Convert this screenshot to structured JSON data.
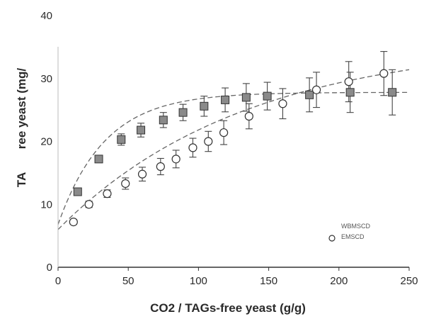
{
  "chart_data": {
    "type": "scatter",
    "title": "",
    "xlabel": "CO2 / TAGs-free yeast (g/g)",
    "ylabel": "TA       ree yeast (mg/",
    "xlim": [
      0,
      250
    ],
    "ylim": [
      0,
      40
    ],
    "xticks": [
      "0",
      "50",
      "100",
      "150",
      "200",
      "250"
    ],
    "yticks": [
      "0",
      "10",
      "20",
      "30",
      "40"
    ],
    "grid": false,
    "legend_position": "bottom-right",
    "series": [
      {
        "name": "WBMSCD",
        "marker": "square",
        "color": "#8a8a8a",
        "x": [
          14,
          29,
          45,
          59,
          75,
          89,
          104,
          119,
          134,
          149,
          179,
          208,
          238
        ],
        "y": [
          12.0,
          17.2,
          20.3,
          21.8,
          23.4,
          24.6,
          25.6,
          26.6,
          27.0,
          27.2,
          27.4,
          27.8,
          27.8
        ],
        "err": [
          0.4,
          0.5,
          0.9,
          1.1,
          1.2,
          1.3,
          1.6,
          1.9,
          2.2,
          2.2,
          2.7,
          3.2,
          3.6
        ]
      },
      {
        "name": "EMSCD",
        "marker": "circle",
        "color": "#ffffff",
        "x": [
          11,
          22,
          35,
          48,
          60,
          73,
          84,
          96,
          107,
          118,
          136,
          160,
          184,
          207,
          232
        ],
        "y": [
          7.2,
          10.0,
          11.7,
          13.3,
          14.8,
          16.0,
          17.2,
          19.0,
          20.0,
          21.4,
          24.0,
          26.0,
          28.2,
          29.5,
          30.8
        ],
        "err": [
          0.4,
          0.5,
          0.6,
          0.9,
          1.1,
          1.3,
          1.4,
          1.5,
          1.6,
          1.9,
          2.0,
          2.4,
          2.8,
          3.2,
          3.5
        ]
      }
    ],
    "fits": [
      {
        "series": "WBMSCD",
        "model": "saturation",
        "ymax": 27.8,
        "k": 0.03,
        "y0": 6.8,
        "x_end": 250
      },
      {
        "series": "EMSCD",
        "model": "saturation",
        "ymax": 36.0,
        "k": 0.0075,
        "y0": 6.0,
        "x_end": 250
      }
    ]
  }
}
